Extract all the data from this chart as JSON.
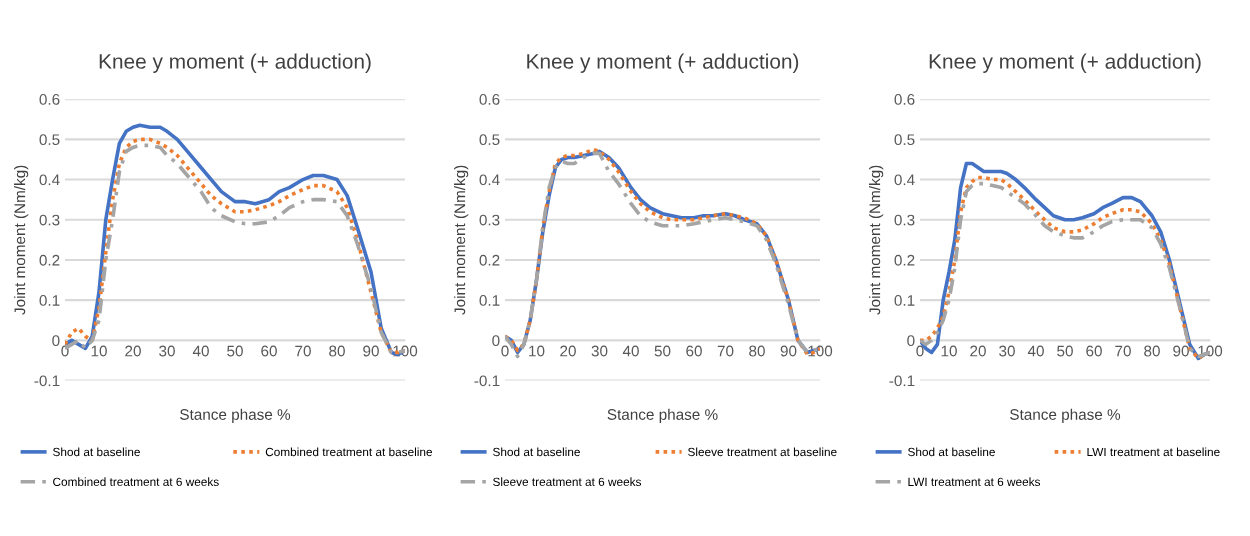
{
  "chart_data": [
    {
      "type": "line",
      "title": "Knee y moment (+ adduction)",
      "xlabel": "Stance phase %",
      "ylabel": "Joint moment (Nm/kg)",
      "x": [
        0,
        2,
        4,
        6,
        8,
        10,
        12,
        14,
        16,
        18,
        20,
        22,
        25,
        28,
        30,
        33,
        36,
        40,
        43,
        46,
        50,
        53,
        56,
        60,
        63,
        66,
        70,
        73,
        76,
        80,
        83,
        86,
        90,
        93,
        96,
        98,
        100
      ],
      "xlim": [
        0,
        100
      ],
      "xticks": [
        0,
        10,
        20,
        30,
        40,
        50,
        60,
        70,
        80,
        90,
        100
      ],
      "ylim": [
        -0.1,
        0.6
      ],
      "yticks": [
        -0.1,
        0,
        0.1,
        0.2,
        0.3,
        0.4,
        0.5,
        0.6
      ],
      "grid": "y",
      "legend": "bottom",
      "series": [
        {
          "name": "Shod at baseline",
          "color": "#4472c4",
          "line_style": "solid",
          "values": [
            -0.01,
            0.0,
            -0.01,
            -0.02,
            0.01,
            0.12,
            0.3,
            0.4,
            0.49,
            0.52,
            0.53,
            0.535,
            0.53,
            0.53,
            0.52,
            0.5,
            0.47,
            0.43,
            0.4,
            0.37,
            0.345,
            0.345,
            0.34,
            0.35,
            0.37,
            0.38,
            0.4,
            0.41,
            0.41,
            0.4,
            0.36,
            0.28,
            0.17,
            0.03,
            -0.03,
            -0.035,
            -0.025
          ]
        },
        {
          "name": "Combined treatment at baseline",
          "color": "#ed7d31",
          "line_style": "dotted",
          "values": [
            -0.01,
            0.02,
            0.03,
            0.01,
            0.0,
            0.08,
            0.22,
            0.35,
            0.44,
            0.48,
            0.495,
            0.5,
            0.5,
            0.49,
            0.48,
            0.46,
            0.43,
            0.39,
            0.36,
            0.34,
            0.32,
            0.32,
            0.325,
            0.335,
            0.345,
            0.36,
            0.375,
            0.385,
            0.385,
            0.37,
            0.33,
            0.25,
            0.12,
            0.02,
            -0.03,
            -0.03,
            -0.025
          ]
        },
        {
          "name": "Combined treatment at 6 weeks",
          "color": "#a5a5a5",
          "line_style": "dashed",
          "values": [
            -0.02,
            -0.01,
            0.0,
            -0.02,
            0.0,
            0.05,
            0.2,
            0.3,
            0.42,
            0.47,
            0.48,
            0.485,
            0.485,
            0.48,
            0.46,
            0.44,
            0.41,
            0.37,
            0.33,
            0.31,
            0.295,
            0.29,
            0.29,
            0.295,
            0.31,
            0.33,
            0.345,
            0.35,
            0.35,
            0.345,
            0.31,
            0.24,
            0.13,
            0.02,
            -0.03,
            -0.03,
            -0.025
          ]
        }
      ]
    },
    {
      "type": "line",
      "title": "Knee y moment (+ adduction)",
      "xlabel": "Stance phase %",
      "ylabel": "Joint moment (Nm/kg)",
      "x": [
        0,
        2,
        4,
        6,
        8,
        10,
        12,
        14,
        16,
        18,
        20,
        22,
        25,
        28,
        30,
        33,
        36,
        40,
        43,
        46,
        50,
        53,
        56,
        60,
        63,
        66,
        70,
        73,
        76,
        80,
        83,
        86,
        90,
        93,
        96,
        98,
        100
      ],
      "xlim": [
        0,
        100
      ],
      "xticks": [
        0,
        10,
        20,
        30,
        40,
        50,
        60,
        70,
        80,
        90,
        100
      ],
      "ylim": [
        -0.1,
        0.6
      ],
      "yticks": [
        -0.1,
        0,
        0.1,
        0.2,
        0.3,
        0.4,
        0.5,
        0.6
      ],
      "grid": "y",
      "legend": "bottom",
      "series": [
        {
          "name": "Shod at baseline",
          "color": "#4472c4",
          "line_style": "solid",
          "values": [
            0.01,
            0.0,
            -0.03,
            -0.01,
            0.05,
            0.15,
            0.27,
            0.36,
            0.43,
            0.45,
            0.455,
            0.455,
            0.46,
            0.465,
            0.47,
            0.455,
            0.43,
            0.38,
            0.35,
            0.33,
            0.315,
            0.31,
            0.305,
            0.305,
            0.31,
            0.31,
            0.315,
            0.31,
            0.3,
            0.29,
            0.26,
            0.2,
            0.1,
            0.0,
            -0.03,
            -0.025,
            -0.02
          ]
        },
        {
          "name": "Sleeve treatment at baseline",
          "color": "#ed7d31",
          "line_style": "dotted",
          "values": [
            0.01,
            0.0,
            -0.025,
            -0.01,
            0.05,
            0.15,
            0.28,
            0.37,
            0.44,
            0.455,
            0.46,
            0.46,
            0.465,
            0.475,
            0.47,
            0.45,
            0.42,
            0.37,
            0.34,
            0.32,
            0.305,
            0.3,
            0.3,
            0.3,
            0.305,
            0.31,
            0.315,
            0.31,
            0.305,
            0.29,
            0.26,
            0.2,
            0.1,
            0.0,
            -0.035,
            -0.03,
            -0.02
          ]
        },
        {
          "name": "Sleeve treatment at 6 weeks",
          "color": "#a5a5a5",
          "line_style": "dashed",
          "values": [
            0.01,
            -0.01,
            -0.04,
            -0.01,
            0.05,
            0.15,
            0.28,
            0.38,
            0.43,
            0.445,
            0.44,
            0.44,
            0.455,
            0.465,
            0.465,
            0.42,
            0.39,
            0.34,
            0.31,
            0.295,
            0.285,
            0.285,
            0.285,
            0.29,
            0.295,
            0.3,
            0.305,
            0.3,
            0.295,
            0.285,
            0.25,
            0.19,
            0.09,
            0.0,
            -0.03,
            -0.025,
            -0.02
          ]
        }
      ]
    },
    {
      "type": "line",
      "title": "Knee y moment (+ adduction)",
      "xlabel": "Stance phase %",
      "ylabel": "Joint moment (Nm/kg)",
      "x": [
        0,
        2,
        4,
        6,
        8,
        10,
        12,
        14,
        16,
        18,
        20,
        22,
        25,
        28,
        30,
        33,
        36,
        40,
        43,
        46,
        50,
        53,
        56,
        60,
        63,
        66,
        70,
        73,
        76,
        80,
        83,
        86,
        90,
        93,
        96,
        98,
        100
      ],
      "xlim": [
        0,
        100
      ],
      "xticks": [
        0,
        10,
        20,
        30,
        40,
        50,
        60,
        70,
        80,
        90,
        100
      ],
      "ylim": [
        -0.1,
        0.6
      ],
      "yticks": [
        -0.1,
        0,
        0.1,
        0.2,
        0.3,
        0.4,
        0.5,
        0.6
      ],
      "grid": "y",
      "legend": "bottom",
      "series": [
        {
          "name": "Shod at baseline",
          "color": "#4472c4",
          "line_style": "solid",
          "values": [
            0.0,
            -0.02,
            -0.03,
            -0.01,
            0.1,
            0.17,
            0.25,
            0.38,
            0.44,
            0.44,
            0.43,
            0.42,
            0.42,
            0.42,
            0.415,
            0.4,
            0.38,
            0.35,
            0.33,
            0.31,
            0.3,
            0.3,
            0.305,
            0.315,
            0.33,
            0.34,
            0.355,
            0.355,
            0.345,
            0.31,
            0.27,
            0.2,
            0.08,
            -0.01,
            -0.045,
            -0.035,
            -0.03
          ]
        },
        {
          "name": "LWI treatment at baseline",
          "color": "#ed7d31",
          "line_style": "dotted",
          "values": [
            0.0,
            0.0,
            0.01,
            0.03,
            0.06,
            0.12,
            0.2,
            0.32,
            0.38,
            0.395,
            0.405,
            0.405,
            0.4,
            0.4,
            0.39,
            0.37,
            0.35,
            0.32,
            0.3,
            0.28,
            0.27,
            0.27,
            0.275,
            0.29,
            0.305,
            0.315,
            0.325,
            0.325,
            0.32,
            0.29,
            0.25,
            0.19,
            0.07,
            -0.02,
            -0.045,
            -0.035,
            -0.03
          ]
        },
        {
          "name": "LWI treatment at 6 weeks",
          "color": "#a5a5a5",
          "line_style": "dashed",
          "values": [
            0.0,
            -0.01,
            0.0,
            0.02,
            0.05,
            0.1,
            0.18,
            0.3,
            0.37,
            0.385,
            0.39,
            0.39,
            0.385,
            0.38,
            0.37,
            0.355,
            0.34,
            0.31,
            0.285,
            0.27,
            0.26,
            0.255,
            0.255,
            0.27,
            0.285,
            0.295,
            0.3,
            0.3,
            0.3,
            0.28,
            0.24,
            0.18,
            0.07,
            -0.02,
            -0.04,
            -0.035,
            -0.03
          ]
        }
      ]
    }
  ]
}
